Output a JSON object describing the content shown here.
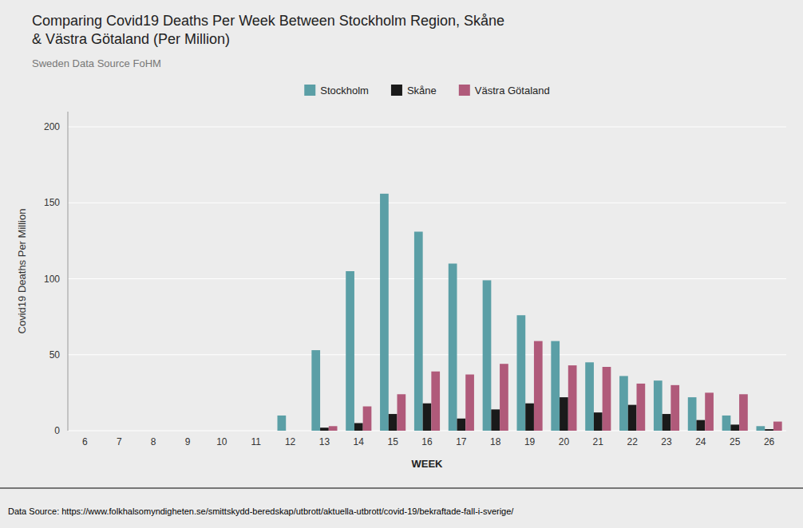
{
  "chart_data": {
    "type": "bar",
    "title": "Comparing Covid19 Deaths Per Week Between Stockholm Region, Skåne\n& Västra Götaland (Per Million)",
    "subtitle": "Sweden Data Source FoHM",
    "x_label": "WEEK",
    "y_label": "Covid19 Deaths Per Million",
    "footer": "Data Source: https://www.folkhalsomyndigheten.se/smittskydd-beredskap/utbrott/aktuella-utbrott/covid-19/bekraftade-fall-i-sverige/",
    "categories": [
      "6",
      "7",
      "8",
      "9",
      "10",
      "11",
      "12",
      "13",
      "14",
      "15",
      "16",
      "17",
      "18",
      "19",
      "20",
      "21",
      "22",
      "23",
      "24",
      "25",
      "26"
    ],
    "series": [
      {
        "name": "Stockholm",
        "color": "#5b9fa6",
        "values": [
          0,
          0,
          0,
          0,
          0,
          0,
          10,
          53,
          105,
          156,
          131,
          110,
          99,
          76,
          59,
          45,
          36,
          33,
          22,
          10,
          3
        ]
      },
      {
        "name": "Skåne",
        "color": "#1a1a1a",
        "values": [
          0,
          0,
          0,
          0,
          0,
          0,
          0,
          2,
          5,
          11,
          18,
          8,
          14,
          18,
          22,
          12,
          17,
          11,
          7,
          4,
          1
        ]
      },
      {
        "name": "Västra Götaland",
        "color": "#b05a7a",
        "values": [
          0,
          0,
          0,
          0,
          0,
          0,
          0,
          3,
          16,
          24,
          39,
          37,
          44,
          59,
          43,
          42,
          31,
          30,
          25,
          24,
          6
        ]
      }
    ],
    "ylim": [
      0,
      210
    ],
    "yticks": [
      0,
      50,
      100,
      150,
      200
    ],
    "grid": true,
    "legend": "top"
  }
}
